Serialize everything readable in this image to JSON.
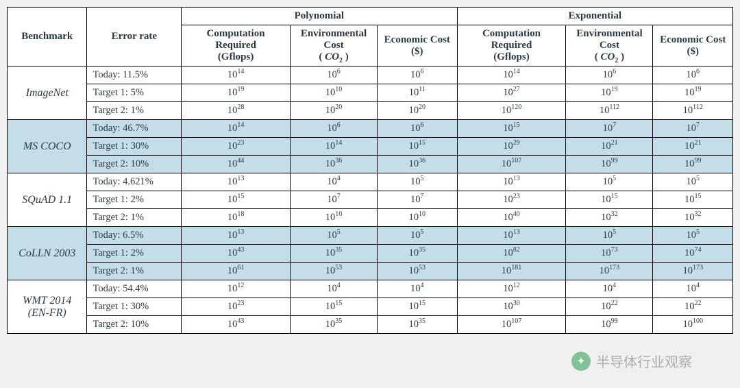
{
  "headers": {
    "benchmark": "Benchmark",
    "error_rate": "Error rate",
    "polynomial": "Polynomial",
    "exponential": "Exponential",
    "computation_required": "Computation Required",
    "computation_unit": "(Gflops)",
    "environmental_cost": "Environmental Cost",
    "environmental_unit_prefix": "( ",
    "environmental_unit_co": "CO",
    "environmental_unit_sub": "2",
    "environmental_unit_suffix": " )",
    "economic_cost": "Economic Cost",
    "economic_unit": "($)"
  },
  "groups": [
    {
      "name": "ImageNet",
      "shaded": false,
      "rows": [
        {
          "label": "Today: 11.5%",
          "p_comp": "14",
          "p_env": "6",
          "p_econ": "6",
          "e_comp": "14",
          "e_env": "6",
          "e_econ": "6"
        },
        {
          "label": "Target 1: 5%",
          "p_comp": "19",
          "p_env": "10",
          "p_econ": "11",
          "e_comp": "27",
          "e_env": "19",
          "e_econ": "19"
        },
        {
          "label": "Target 2: 1%",
          "p_comp": "28",
          "p_env": "20",
          "p_econ": "20",
          "e_comp": "120",
          "e_env": "112",
          "e_econ": "112"
        }
      ]
    },
    {
      "name": "MS COCO",
      "shaded": true,
      "rows": [
        {
          "label": "Today: 46.7%",
          "p_comp": "14",
          "p_env": "6",
          "p_econ": "6",
          "e_comp": "15",
          "e_env": "7",
          "e_econ": "7"
        },
        {
          "label": "Target 1: 30%",
          "p_comp": "23",
          "p_env": "14",
          "p_econ": "15",
          "e_comp": "29",
          "e_env": "21",
          "e_econ": "21"
        },
        {
          "label": "Target 2: 10%",
          "p_comp": "44",
          "p_env": "36",
          "p_econ": "36",
          "e_comp": "107",
          "e_env": "99",
          "e_econ": "99"
        }
      ]
    },
    {
      "name": "SQuAD 1.1",
      "shaded": false,
      "rows": [
        {
          "label": "Today: 4.621%",
          "p_comp": "13",
          "p_env": "4",
          "p_econ": "5",
          "e_comp": "13",
          "e_env": "5",
          "e_econ": "5"
        },
        {
          "label": "Target 1: 2%",
          "p_comp": "15",
          "p_env": "7",
          "p_econ": "7",
          "e_comp": "23",
          "e_env": "15",
          "e_econ": "15"
        },
        {
          "label": "Target 2: 1%",
          "p_comp": "18",
          "p_env": "10",
          "p_econ": "10",
          "e_comp": "40",
          "e_env": "32",
          "e_econ": "32"
        }
      ]
    },
    {
      "name": "CoLLN 2003",
      "shaded": true,
      "rows": [
        {
          "label": "Today: 6.5%",
          "p_comp": "13",
          "p_env": "5",
          "p_econ": "5",
          "e_comp": "13",
          "e_env": "5",
          "e_econ": "5"
        },
        {
          "label": "Target 1: 2%",
          "p_comp": "43",
          "p_env": "35",
          "p_econ": "35",
          "e_comp": "82",
          "e_env": "73",
          "e_econ": "74"
        },
        {
          "label": "Target 2: 1%",
          "p_comp": "61",
          "p_env": "53",
          "p_econ": "53",
          "e_comp": "181",
          "e_env": "173",
          "e_econ": "173"
        }
      ]
    },
    {
      "name": "WMT 2014 (EN-FR)",
      "shaded": false,
      "rows": [
        {
          "label": "Today: 54.4%",
          "p_comp": "12",
          "p_env": "4",
          "p_econ": "4",
          "e_comp": "12",
          "e_env": "4",
          "e_econ": "4"
        },
        {
          "label": "Target 1: 30%",
          "p_comp": "23",
          "p_env": "15",
          "p_econ": "15",
          "e_comp": "30",
          "e_env": "22",
          "e_econ": "22"
        },
        {
          "label": "Target 2: 10%",
          "p_comp": "43",
          "p_env": "35",
          "p_econ": "35",
          "e_comp": "107",
          "e_env": "99",
          "e_econ": "100"
        }
      ]
    }
  ],
  "watermark": "半导体行业观察",
  "colors": {
    "shade": "#c3dde9",
    "text": "#2a3a45",
    "border": "#000000",
    "background": "#ffffff"
  }
}
